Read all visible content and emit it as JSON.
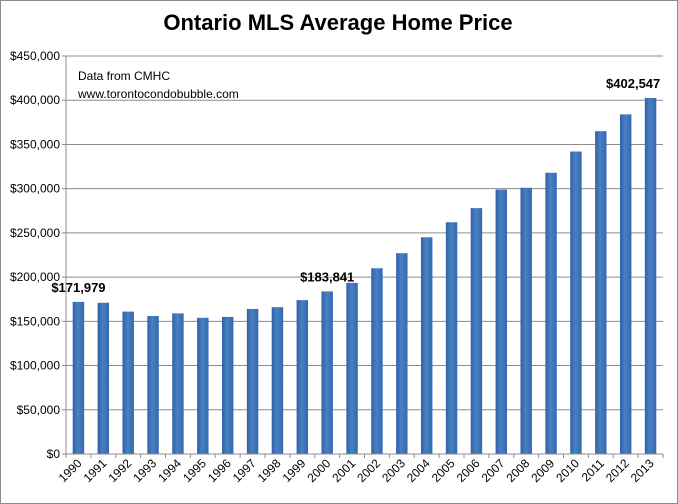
{
  "chart_data": {
    "type": "bar",
    "title": "Ontario MLS Average Home Price",
    "xlabel": "",
    "ylabel": "",
    "ylim": [
      0,
      450000
    ],
    "yticks": [
      0,
      50000,
      100000,
      150000,
      200000,
      250000,
      300000,
      350000,
      400000,
      450000
    ],
    "ytick_labels": [
      "$0",
      "$50,000",
      "$100,000",
      "$150,000",
      "$200,000",
      "$250,000",
      "$300,000",
      "$350,000",
      "$400,000",
      "$450,000"
    ],
    "grid": true,
    "bar_color": "#4a7fc1",
    "categories": [
      "1990",
      "1991",
      "1992",
      "1993",
      "1994",
      "1995",
      "1996",
      "1997",
      "1998",
      "1999",
      "2000",
      "2001",
      "2002",
      "2003",
      "2004",
      "2005",
      "2006",
      "2007",
      "2008",
      "2009",
      "2010",
      "2011",
      "2012",
      "2013"
    ],
    "values": [
      171979,
      171000,
      161000,
      156000,
      159000,
      154000,
      155000,
      164000,
      166000,
      174000,
      183841,
      193500,
      210000,
      227000,
      245000,
      262000,
      278000,
      299000,
      301000,
      318000,
      342000,
      365000,
      384000,
      402547
    ],
    "annotations": [
      {
        "category": "1990",
        "text": "$171,979"
      },
      {
        "category": "2000",
        "text": "$183,841"
      },
      {
        "category": "2013",
        "text": "$402,547"
      }
    ],
    "notes": [
      "Data from CMHC",
      "www.torontocondobubble.com"
    ]
  }
}
